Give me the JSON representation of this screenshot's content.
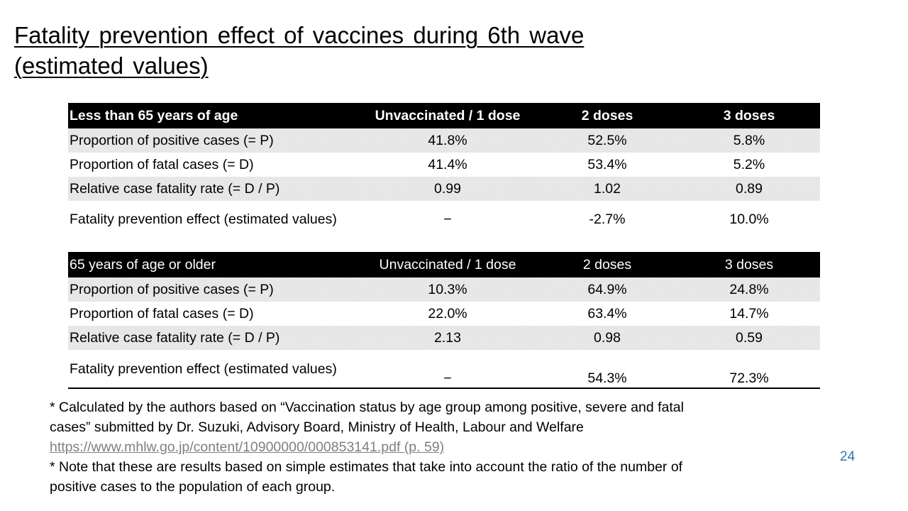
{
  "title": {
    "line1": "Fatality prevention effect of vaccines during 6th wave",
    "line2": "(estimated values)"
  },
  "tables": [
    {
      "header": [
        "Less than 65 years of age",
        "Unvaccinated / 1 dose",
        "2 doses",
        "3 doses"
      ],
      "rows": [
        {
          "label": "Proportion of positive cases (= P)",
          "values": [
            "41.8%",
            "52.5%",
            "5.8%"
          ]
        },
        {
          "label": "Proportion of fatal cases (= D)",
          "values": [
            "41.4%",
            "53.4%",
            "5.2%"
          ]
        },
        {
          "label": "Relative case fatality rate (= D / P)",
          "values": [
            "0.99",
            "1.02",
            "0.89"
          ]
        },
        {
          "label": "Fatality prevention effect (estimated values)",
          "values": [
            "−",
            "-2.7%",
            "10.0%"
          ]
        }
      ]
    },
    {
      "header": [
        "65 years of age or older",
        "Unvaccinated / 1 dose",
        "2 doses",
        "3 doses"
      ],
      "rows": [
        {
          "label": "Proportion of positive cases (= P)",
          "values": [
            "10.3%",
            "64.9%",
            "24.8%"
          ]
        },
        {
          "label": "Proportion of fatal cases (= D)",
          "values": [
            "22.0%",
            "63.4%",
            "14.7%"
          ]
        },
        {
          "label": "Relative case fatality rate (= D / P)",
          "values": [
            "2.13",
            "0.98",
            "0.59"
          ]
        },
        {
          "label": "Fatality prevention effect (estimated values)",
          "values": [
            "−",
            "54.3%",
            "72.3%"
          ]
        }
      ]
    }
  ],
  "notes": {
    "line1": "* Calculated by the authors based on “Vaccination status by age group among positive, severe and fatal",
    "line2": "cases” submitted by Dr. Suzuki, Advisory Board, Ministry of Health, Labour and Welfare",
    "link": "https://www.mhlw.go.jp/content/10900000/000853141.pdf (p. 59)",
    "line3": "* Note that these are results based on simple estimates that take into account the ratio of the number of",
    "line4": "positive cases to the population of each group."
  },
  "page_number": "24",
  "colors": {
    "header_bg": "#000000",
    "row_shade": "#e4e4e4",
    "link": "#7f7f7f",
    "page_number": "#2e75b6"
  }
}
